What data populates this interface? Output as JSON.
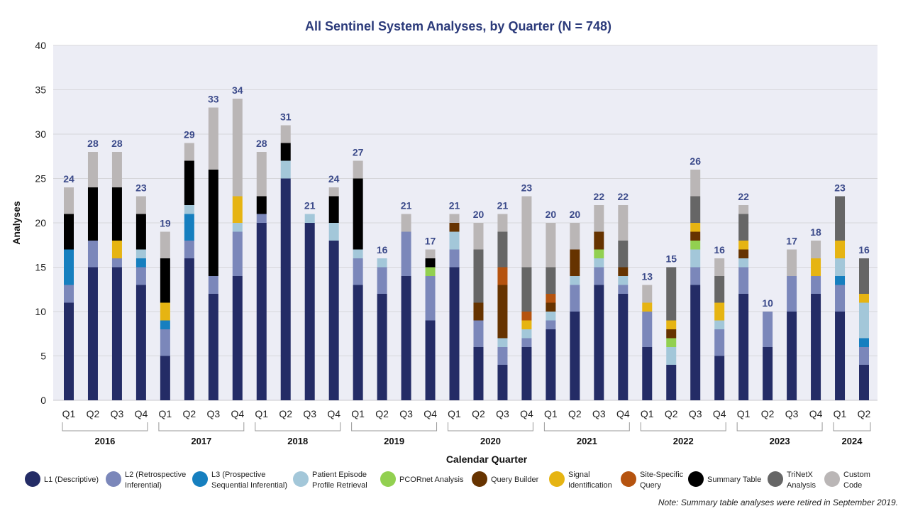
{
  "chart_data": {
    "type": "bar",
    "stacked": true,
    "title": "All Sentinel System Analyses, by Quarter (N = 748)",
    "xlabel": "Calendar Quarter",
    "ylabel": "Analyses",
    "ylim": [
      0,
      40
    ],
    "yticks": [
      0,
      5,
      10,
      15,
      20,
      25,
      30,
      35,
      40
    ],
    "grid": true,
    "legend_position": "bottom",
    "years": [
      {
        "label": "2016",
        "quarters": [
          "Q1",
          "Q2",
          "Q3",
          "Q4"
        ]
      },
      {
        "label": "2017",
        "quarters": [
          "Q1",
          "Q2",
          "Q3",
          "Q4"
        ]
      },
      {
        "label": "2018",
        "quarters": [
          "Q1",
          "Q2",
          "Q3",
          "Q4"
        ]
      },
      {
        "label": "2019",
        "quarters": [
          "Q1",
          "Q2",
          "Q3",
          "Q4"
        ]
      },
      {
        "label": "2020",
        "quarters": [
          "Q1",
          "Q2",
          "Q3",
          "Q4"
        ]
      },
      {
        "label": "2021",
        "quarters": [
          "Q1",
          "Q2",
          "Q3",
          "Q4"
        ]
      },
      {
        "label": "2022",
        "quarters": [
          "Q1",
          "Q2",
          "Q3",
          "Q4"
        ]
      },
      {
        "label": "2023",
        "quarters": [
          "Q1",
          "Q2",
          "Q3",
          "Q4"
        ]
      },
      {
        "label": "2024",
        "quarters": [
          "Q1",
          "Q2"
        ]
      }
    ],
    "totals": [
      24,
      28,
      28,
      23,
      19,
      29,
      33,
      34,
      28,
      31,
      21,
      24,
      27,
      16,
      21,
      17,
      21,
      20,
      21,
      23,
      20,
      20,
      22,
      22,
      13,
      15,
      26,
      16,
      22,
      10,
      17,
      18,
      23,
      16
    ],
    "series": [
      {
        "name": "L1 (Descriptive)",
        "color": "#242c66",
        "values": [
          11,
          15,
          15,
          13,
          5,
          16,
          12,
          14,
          20,
          25,
          20,
          18,
          13,
          12,
          14,
          9,
          15,
          6,
          4,
          6,
          8,
          10,
          13,
          12,
          6,
          4,
          13,
          5,
          12,
          6,
          10,
          12,
          10,
          4
        ]
      },
      {
        "name": "L2 (Retrospective Inferential)",
        "color": "#7b87ba",
        "values": [
          2,
          3,
          1,
          2,
          3,
          2,
          2,
          5,
          1,
          0,
          0,
          0,
          3,
          3,
          5,
          5,
          2,
          3,
          2,
          1,
          1,
          3,
          2,
          1,
          4,
          0,
          2,
          3,
          3,
          4,
          4,
          2,
          3,
          2
        ]
      },
      {
        "name": "L3 (Prospective Sequential Inferential)",
        "color": "#167fbf",
        "values": [
          4,
          0,
          0,
          1,
          1,
          3,
          0,
          0,
          0,
          0,
          0,
          0,
          0,
          0,
          0,
          0,
          0,
          0,
          0,
          0,
          0,
          0,
          0,
          0,
          0,
          0,
          0,
          0,
          0,
          0,
          0,
          0,
          1,
          1
        ]
      },
      {
        "name": "Patient Episode Profile Retrieval",
        "color": "#a3c7d9",
        "values": [
          0,
          0,
          0,
          1,
          0,
          1,
          0,
          1,
          0,
          2,
          1,
          2,
          1,
          1,
          0,
          0,
          2,
          0,
          1,
          1,
          1,
          1,
          1,
          1,
          0,
          2,
          2,
          1,
          1,
          0,
          0,
          0,
          2,
          4
        ]
      },
      {
        "name": "PCORnet Analysis",
        "color": "#92d050",
        "values": [
          0,
          0,
          0,
          0,
          0,
          0,
          0,
          0,
          0,
          0,
          0,
          0,
          0,
          0,
          0,
          1,
          0,
          0,
          0,
          0,
          0,
          0,
          1,
          0,
          0,
          1,
          1,
          0,
          0,
          0,
          0,
          0,
          0,
          0
        ]
      },
      {
        "name": "Query Builder",
        "color": "#663300",
        "values": [
          0,
          0,
          0,
          0,
          0,
          0,
          0,
          0,
          0,
          0,
          0,
          0,
          0,
          0,
          0,
          0,
          1,
          2,
          6,
          0,
          1,
          3,
          2,
          1,
          0,
          1,
          1,
          0,
          1,
          0,
          0,
          0,
          0,
          0
        ]
      },
      {
        "name": "Signal Identification",
        "color": "#e6b412",
        "values": [
          0,
          0,
          2,
          0,
          2,
          0,
          0,
          3,
          0,
          0,
          0,
          0,
          0,
          0,
          0,
          0,
          0,
          0,
          0,
          1,
          0,
          0,
          0,
          0,
          1,
          1,
          1,
          2,
          1,
          0,
          0,
          2,
          2,
          1
        ]
      },
      {
        "name": "Site-Specific Query",
        "color": "#b5530f",
        "values": [
          0,
          0,
          0,
          0,
          0,
          0,
          0,
          0,
          0,
          0,
          0,
          0,
          0,
          0,
          0,
          0,
          0,
          0,
          2,
          1,
          1,
          0,
          0,
          0,
          0,
          0,
          0,
          0,
          0,
          0,
          0,
          0,
          0,
          0
        ]
      },
      {
        "name": "Summary Table",
        "color": "#000000",
        "values": [
          4,
          6,
          6,
          4,
          5,
          5,
          12,
          0,
          2,
          2,
          0,
          3,
          8,
          0,
          0,
          1,
          0,
          0,
          0,
          0,
          0,
          0,
          0,
          0,
          0,
          0,
          0,
          0,
          0,
          0,
          0,
          0,
          0,
          0
        ]
      },
      {
        "name": "TriNetX Analysis",
        "color": "#666666",
        "values": [
          0,
          0,
          0,
          0,
          0,
          0,
          0,
          0,
          0,
          0,
          0,
          0,
          0,
          0,
          0,
          0,
          0,
          6,
          4,
          5,
          3,
          0,
          0,
          3,
          0,
          6,
          3,
          3,
          3,
          0,
          0,
          0,
          5,
          4
        ]
      },
      {
        "name": "Custom Code",
        "color": "#bab6b6",
        "values": [
          3,
          4,
          4,
          2,
          3,
          2,
          7,
          11,
          5,
          2,
          0,
          1,
          2,
          0,
          2,
          1,
          1,
          3,
          2,
          8,
          5,
          3,
          3,
          4,
          2,
          0,
          3,
          2,
          1,
          0,
          3,
          2,
          0,
          0
        ]
      }
    ],
    "legend": [
      {
        "line1": "L1 (Descriptive)",
        "line2": ""
      },
      {
        "line1": "L2 (Retrospective",
        "line2": "Inferential)"
      },
      {
        "line1": "L3 (Prospective",
        "line2": "Sequential Inferential)"
      },
      {
        "line1": "Patient Episode",
        "line2": "Profile Retrieval"
      },
      {
        "line1": "PCORnet Analysis",
        "line2": ""
      },
      {
        "line1": "Query Builder",
        "line2": ""
      },
      {
        "line1": "Signal",
        "line2": "Identification"
      },
      {
        "line1": "Site-Specific",
        "line2": "Query"
      },
      {
        "line1": "Summary Table",
        "line2": ""
      },
      {
        "line1": "TriNetX",
        "line2": "Analysis"
      },
      {
        "line1": "Custom",
        "line2": "Code"
      }
    ],
    "note": "Note: Summary table analyses were retired in September 2019.",
    "plot_background": "#ecedf5"
  }
}
